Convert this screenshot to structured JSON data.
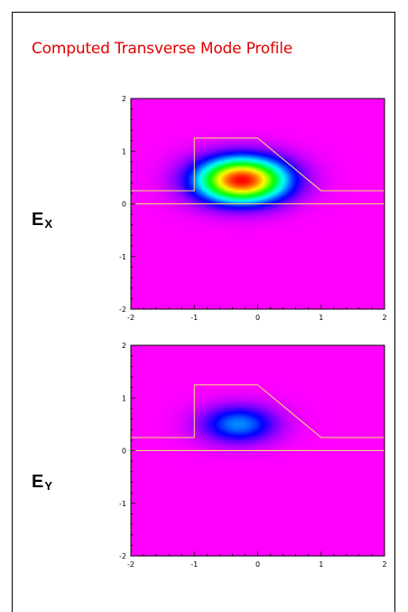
{
  "title": "Computed Transverse Mode Profile",
  "colors": {
    "title": "#e00000",
    "background_field": "#ff00ff",
    "waveguide_outline": "#ffe070"
  },
  "panels": [
    {
      "id": "ex",
      "label_main": "E",
      "label_sub": "X",
      "colormap": "jet",
      "peak_center": [
        -0.25,
        0.45
      ],
      "peak_sigma": [
        0.5,
        0.3
      ],
      "intensity": 1.0
    },
    {
      "id": "ey",
      "label_main": "E",
      "label_sub": "Y",
      "colormap": "jet",
      "peak_center": [
        -0.3,
        0.5
      ],
      "peak_sigma": [
        0.42,
        0.25
      ],
      "intensity": 0.33
    }
  ],
  "axes": {
    "xlim": [
      -2,
      2
    ],
    "ylim": [
      -2,
      2
    ],
    "x_ticks": [
      "-2",
      "-1",
      "0",
      "1",
      "2"
    ],
    "y_ticks": [
      "2",
      "1",
      "0",
      "-1",
      "-2"
    ]
  },
  "waveguide": {
    "substrate_top_y": 0.0,
    "slab_top_y": 0.25,
    "rib_outline": [
      [
        -2,
        0.25
      ],
      [
        -1,
        0.25
      ],
      [
        -1,
        1.25
      ],
      [
        0,
        1.25
      ],
      [
        1,
        0.25
      ],
      [
        2,
        0.25
      ]
    ]
  }
}
